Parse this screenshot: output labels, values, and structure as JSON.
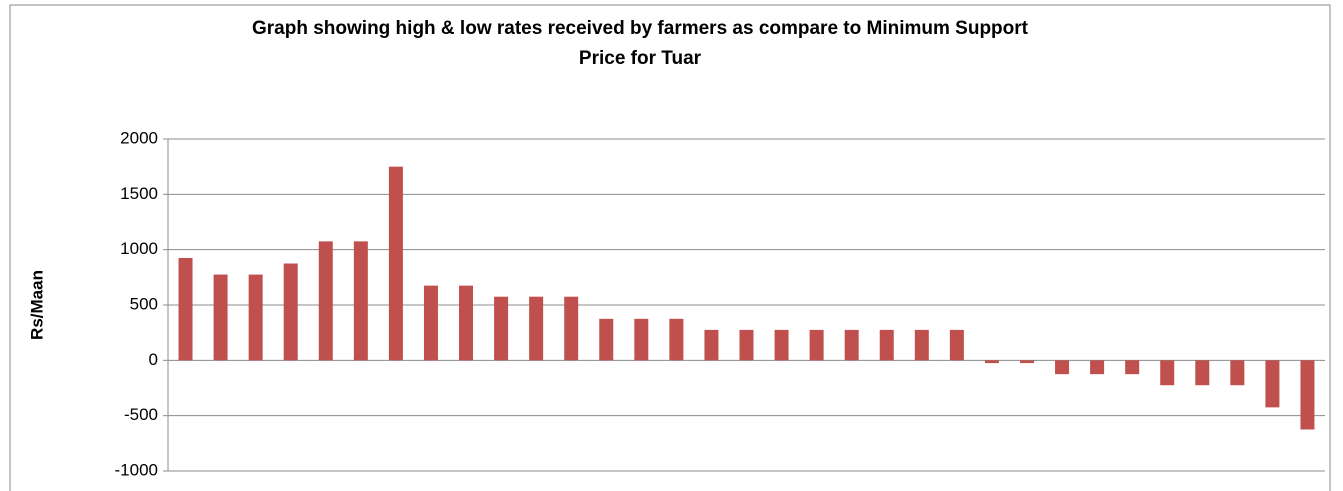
{
  "chart_data": {
    "type": "bar",
    "title": "Graph showing high & low rates received by farmers as compare to Minimum Support Price for Tuar",
    "y_label": "Rs/Maan",
    "categories": [
      null,
      null,
      null,
      null,
      null,
      null,
      null,
      null,
      null,
      null,
      null,
      null,
      null,
      null,
      null,
      null,
      null,
      null,
      null,
      null,
      null,
      null,
      null,
      null,
      null,
      null,
      null,
      null,
      null,
      null,
      null,
      null,
      null
    ],
    "values": [
      925,
      775,
      775,
      875,
      1075,
      1075,
      1750,
      675,
      675,
      575,
      575,
      575,
      375,
      375,
      375,
      275,
      275,
      275,
      275,
      275,
      275,
      275,
      275,
      -25,
      -25,
      -125,
      -125,
      -125,
      -225,
      -225,
      -225,
      -425,
      -625
    ],
    "color": "#c0504d",
    "ylim": [
      -1000,
      2000
    ],
    "yticks": [
      -1000,
      -500,
      0,
      500,
      1000,
      1500,
      2000
    ],
    "grid": true
  }
}
